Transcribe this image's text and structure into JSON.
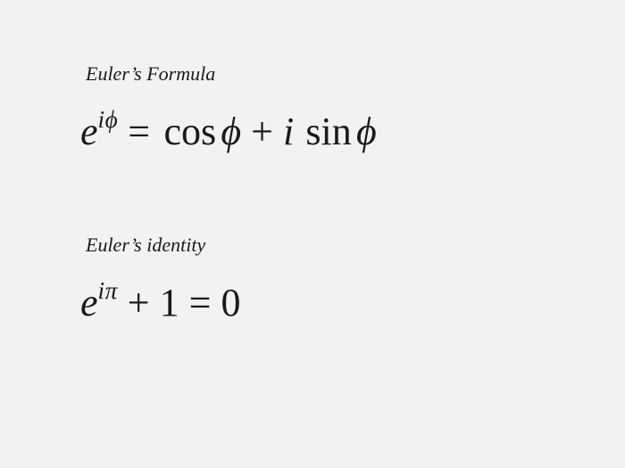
{
  "background_color": "#f2f2f2",
  "text_color": "#1a1a1a",
  "title_fontsize": 22,
  "formula_fontsize": 44,
  "section1": {
    "title": "Euler’s Formula",
    "base": "e",
    "exp_i": "i",
    "exp_phi": "ϕ",
    "eq": "=",
    "cos": "cos",
    "phi1": "ϕ",
    "plus": "+",
    "i": "i",
    "sin": "sin",
    "phi2": "ϕ"
  },
  "section2": {
    "title": "Euler’s identity",
    "base": "e",
    "exp_i": "i",
    "exp_pi": "π",
    "plus": "+",
    "one": "1",
    "eq": "=",
    "zero": "0"
  }
}
